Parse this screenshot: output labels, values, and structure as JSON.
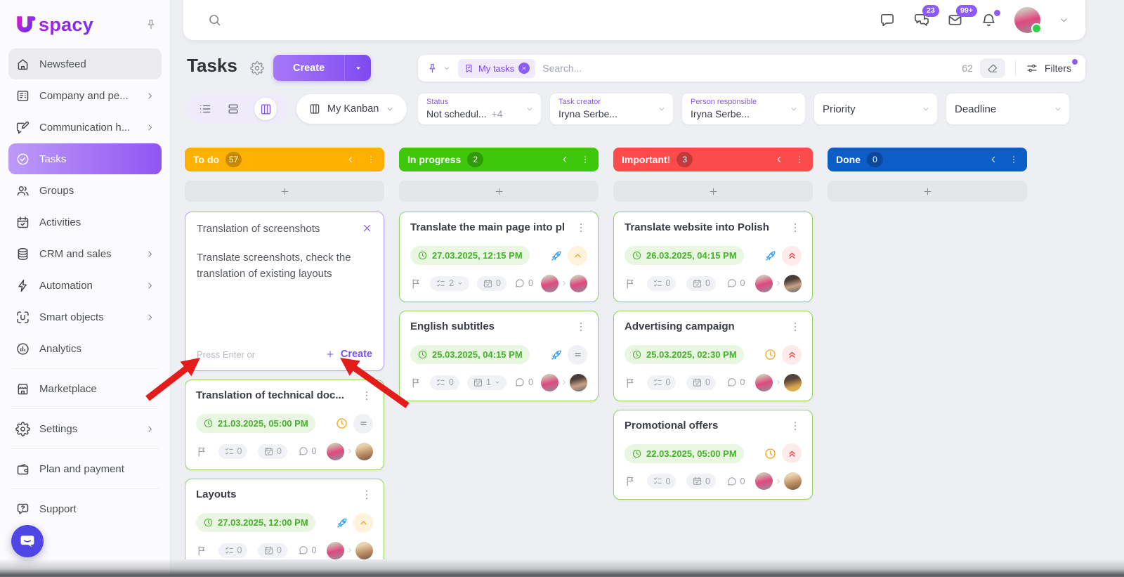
{
  "brand": {
    "name_rest": "spacy"
  },
  "topbar": {
    "chats_badge": "23",
    "mail_badge": "99+"
  },
  "sidebar": {
    "items": [
      {
        "id": "newsfeed",
        "label": "Newsfeed",
        "icon": "home",
        "chevron": false,
        "state": "hover"
      },
      {
        "id": "company",
        "label": "Company and pe...",
        "icon": "company",
        "chevron": true
      },
      {
        "id": "communication",
        "label": "Communication h...",
        "icon": "comm",
        "chevron": true
      },
      {
        "id": "tasks",
        "label": "Tasks",
        "icon": "tasks",
        "chevron": false,
        "state": "active"
      },
      {
        "id": "groups",
        "label": "Groups",
        "icon": "groups",
        "chevron": false
      },
      {
        "id": "activities",
        "label": "Activities",
        "icon": "activities",
        "chevron": false
      },
      {
        "id": "crm",
        "label": "CRM and sales",
        "icon": "crm",
        "chevron": true
      },
      {
        "id": "automation",
        "label": "Automation",
        "icon": "automation",
        "chevron": true
      },
      {
        "id": "smart-objects",
        "label": "Smart objects",
        "icon": "smart",
        "chevron": true
      },
      {
        "id": "analytics",
        "label": "Analytics",
        "icon": "analytics",
        "chevron": false,
        "divider_after": true
      },
      {
        "id": "marketplace",
        "label": "Marketplace",
        "icon": "marketplace",
        "chevron": false,
        "divider_after": true
      },
      {
        "id": "settings",
        "label": "Settings",
        "icon": "settings",
        "chevron": true,
        "divider_after": true
      },
      {
        "id": "plan-and-payment",
        "label": "Plan and payment",
        "icon": "wallet",
        "chevron": false,
        "divider_after": true
      },
      {
        "id": "support",
        "label": "Support",
        "icon": "support",
        "chevron": false
      }
    ]
  },
  "page": {
    "title": "Tasks",
    "create_label": "Create"
  },
  "searchbar": {
    "chip": "My tasks",
    "placeholder": "Search...",
    "count": "62",
    "filters_label": "Filters"
  },
  "views": {
    "kanban_label": "My Kanban"
  },
  "filter_fields": [
    {
      "label": "Status",
      "value": "Not schedul...",
      "extra": "+4",
      "labeled": true
    },
    {
      "label": "Task creator",
      "value": "Iryna Serbe...",
      "extra": "",
      "labeled": true
    },
    {
      "label": "Person responsible",
      "value": "Iryna Serbe...",
      "extra": "",
      "labeled": true
    },
    {
      "label": "Priority",
      "value": "",
      "extra": "",
      "labeled": false
    },
    {
      "label": "Deadline",
      "value": "",
      "extra": "",
      "labeled": false
    }
  ],
  "composer": {
    "title": "Translation of screenshots",
    "description": "Translate screenshots, check the translation of existing layouts",
    "hint": "Press Enter or",
    "create_label": "Create"
  },
  "board": {
    "columns": [
      {
        "name": "To do",
        "count": "57",
        "color": "#ffb002",
        "cards": [
          {
            "composer": true
          },
          {
            "title": "Translation of technical doc...",
            "date": "21.03.2025, 05:00 PM",
            "indicators": {
              "overdue": true,
              "rocket": false,
              "priority": "medium"
            },
            "footer": {
              "checklist": "0",
              "checklist_dd": false,
              "calendar": "0",
              "calendar_dd": false,
              "comments": "0"
            },
            "avatars": [
              "p",
              "b"
            ]
          },
          {
            "title": "Layouts",
            "date": "27.03.2025, 12:00 PM",
            "indicators": {
              "overdue": false,
              "rocket": true,
              "priority": "high"
            },
            "footer": {
              "checklist": "0",
              "checklist_dd": false,
              "calendar": "0",
              "calendar_dd": false,
              "comments": "0"
            },
            "avatars": [
              "p",
              "b"
            ]
          }
        ]
      },
      {
        "name": "In progress",
        "count": "2",
        "color": "#3ec70b",
        "cards": [
          {
            "title": "Translate the main page into pl",
            "date": "27.03.2025, 12:15 PM",
            "indicators": {
              "overdue": false,
              "rocket": true,
              "priority": "high"
            },
            "footer": {
              "checklist": "2",
              "checklist_dd": true,
              "calendar": "0",
              "calendar_dd": false,
              "comments": "0"
            },
            "avatars": [
              "p",
              "p"
            ]
          },
          {
            "title": "English subtitles",
            "date": "25.03.2025, 04:15 PM",
            "indicators": {
              "overdue": false,
              "rocket": true,
              "priority": "medium"
            },
            "footer": {
              "checklist": "0",
              "checklist_dd": false,
              "calendar": "1",
              "calendar_dd": true,
              "comments": "0"
            },
            "avatars": [
              "p",
              "d"
            ]
          }
        ]
      },
      {
        "name": "Important!",
        "count": "3",
        "color": "#fb4b4b",
        "cards": [
          {
            "title": "Translate website into Polish",
            "date": "26.03.2025, 04:15 PM",
            "indicators": {
              "overdue": false,
              "rocket": true,
              "priority": "urgent"
            },
            "footer": {
              "checklist": "0",
              "checklist_dd": false,
              "calendar": "0",
              "calendar_dd": false,
              "comments": "0"
            },
            "avatars": [
              "p",
              "d"
            ]
          },
          {
            "title": "Advertising campaign",
            "date": "25.03.2025, 02:30 PM",
            "indicators": {
              "overdue": true,
              "rocket": false,
              "priority": "urgent"
            },
            "footer": {
              "checklist": "0",
              "checklist_dd": false,
              "calendar": "0",
              "calendar_dd": false,
              "comments": "0"
            },
            "avatars": [
              "p",
              "y"
            ]
          },
          {
            "title": "Promotional offers",
            "date": "22.03.2025, 05:00 PM",
            "indicators": {
              "overdue": true,
              "rocket": false,
              "priority": "urgent"
            },
            "footer": {
              "checklist": "0",
              "checklist_dd": false,
              "calendar": "0",
              "calendar_dd": false,
              "comments": "0"
            },
            "avatars": [
              "p",
              "b"
            ]
          }
        ]
      },
      {
        "name": "Done",
        "count": "0",
        "color": "#0d5dc6",
        "cards": []
      }
    ]
  }
}
